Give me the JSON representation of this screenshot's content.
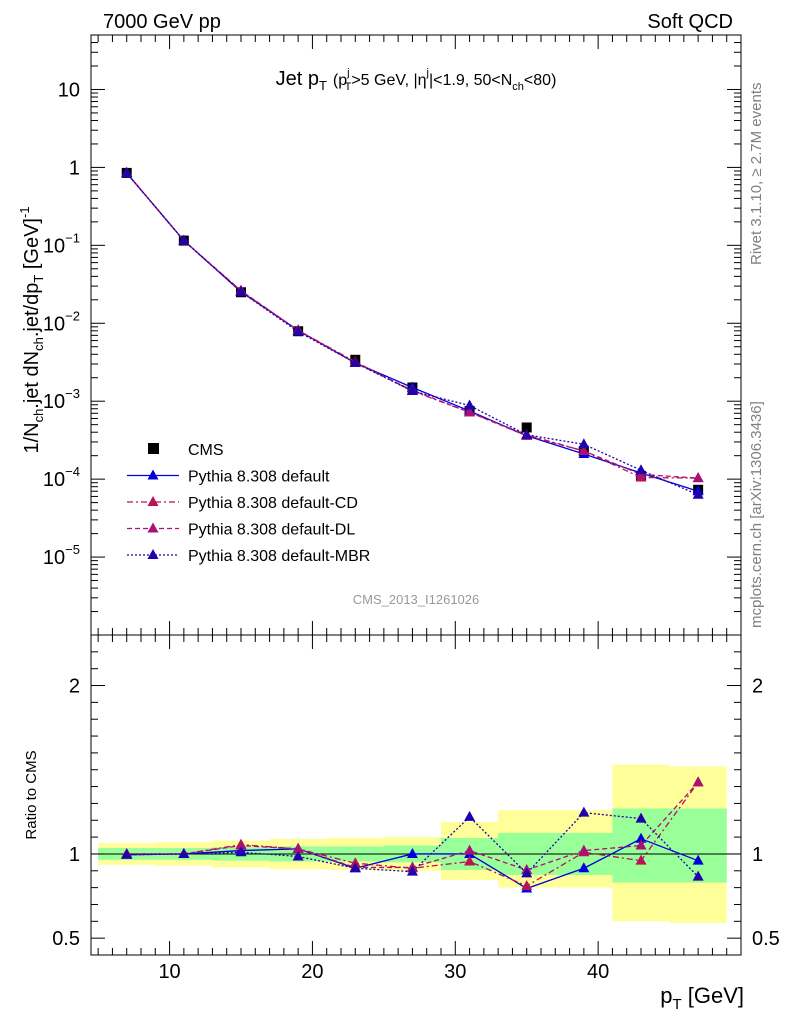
{
  "header": {
    "left": "7000 GeV pp",
    "right": "Soft QCD"
  },
  "side_labels": {
    "rivet": "Rivet 3.1.10, ≥ 2.7M events",
    "mcplots": "mcplots.cern.ch [arXiv:1306.3436]"
  },
  "watermark": "CMS_2013_I1261026",
  "colors": {
    "cms": "#000000",
    "default": "#0000dd",
    "cd": "#bb1155",
    "dl": "#aa1177",
    "mbr": "#2200aa",
    "band_inner": "#99ff99",
    "band_outer": "#ffff99"
  },
  "chart_data": [
    {
      "type": "scatter",
      "title_main": "Jet p",
      "title_main_sub": "T",
      "title_cond": "(p",
      "title_cond_sub": "T",
      "title_cond_sup": "j",
      "title_cond_rest": ">5 GeV, |η",
      "title_cond_sup2": "j",
      "title_cond_rest2": "|<1.9, 50<N",
      "title_cond_sub2": "ch",
      "title_cond_end": "<80)",
      "ylabel": "1/N",
      "ylabel_sub": "ch",
      "ylabel_mid": ".jet dN",
      "ylabel_sub2": "ch",
      "ylabel_mid2": ".jet/dp",
      "ylabel_sub3": "T",
      "ylabel_unit": " [GeV]",
      "ylabel_unit_sup": "-1",
      "y_scale": "log",
      "ylim": [
        1e-06,
        50
      ],
      "xlim": [
        4.5,
        50
      ],
      "ytick_labels": [
        {
          "base": "10",
          "exp": "",
          "value": 10
        },
        {
          "base": "1",
          "exp": "",
          "value": 1
        },
        {
          "base": "10",
          "exp": "−1",
          "value": 0.1
        },
        {
          "base": "10",
          "exp": "−2",
          "value": 0.01
        },
        {
          "base": "10",
          "exp": "−3",
          "value": 0.001
        },
        {
          "base": "10",
          "exp": "−4",
          "value": 0.0001
        },
        {
          "base": "10",
          "exp": "−5",
          "value": 1e-05
        }
      ],
      "x": [
        7,
        11,
        15,
        19,
        23,
        27,
        31,
        35,
        39,
        43,
        47
      ],
      "series": [
        {
          "name": "CMS",
          "key": "cms",
          "marker": "square",
          "dash": "",
          "values": [
            0.85,
            0.115,
            0.025,
            0.0079,
            0.0034,
            0.0015,
            0.00075,
            0.00046,
            0.00023,
            0.00011,
            7.3e-05
          ]
        },
        {
          "name": "Pythia 8.308 default",
          "key": "default",
          "marker": "triangle",
          "dash": "",
          "values": [
            0.845,
            0.115,
            0.0254,
            0.0081,
            0.0031,
            0.0015,
            0.00075,
            0.00036,
            0.00021,
            0.00012,
            7e-05
          ]
        },
        {
          "name": "Pythia 8.308 default-CD",
          "key": "cd",
          "marker": "triangle",
          "dash": "6,3,2,3",
          "values": [
            0.85,
            0.115,
            0.026,
            0.0081,
            0.0032,
            0.00135,
            0.00072,
            0.00037,
            0.00023,
            0.000105,
            0.000103
          ]
        },
        {
          "name": "Pythia 8.308 default-DL",
          "key": "dl",
          "marker": "triangle",
          "dash": "5,3",
          "values": [
            0.85,
            0.115,
            0.0262,
            0.0081,
            0.0031,
            0.00138,
            0.00072,
            0.00036,
            0.00023,
            0.000115,
            0.000103
          ]
        },
        {
          "name": "Pythia 8.308 default-MBR",
          "key": "mbr",
          "marker": "triangle",
          "dash": "2,2",
          "values": [
            0.845,
            0.115,
            0.0253,
            0.0078,
            0.0031,
            0.00135,
            0.00088,
            0.00037,
            0.00028,
            0.00013,
            6.3e-05
          ]
        }
      ],
      "legend_position": "bottom-left"
    },
    {
      "type": "scatter",
      "ylabel": "Ratio to CMS",
      "xlabel": "p",
      "xlabel_sub": "T",
      "xlabel_unit": " [GeV]",
      "ylim": [
        0.4,
        2.3
      ],
      "xlim": [
        4.5,
        50
      ],
      "xticks": [
        10,
        20,
        30,
        40
      ],
      "yticks": [
        0.5,
        1,
        2
      ],
      "ytick_labels": [
        "0.5",
        "1",
        "2"
      ],
      "reference_line": 1,
      "band_edges": [
        5,
        9,
        13,
        17,
        21,
        25,
        29,
        33,
        37,
        41,
        45,
        49
      ],
      "band_inner": [
        [
          0.965,
          1.035
        ],
        [
          0.965,
          1.035
        ],
        [
          0.96,
          1.04
        ],
        [
          0.955,
          1.045
        ],
        [
          0.955,
          1.045
        ],
        [
          0.95,
          1.05
        ],
        [
          0.905,
          1.095
        ],
        [
          0.875,
          1.125
        ],
        [
          0.875,
          1.125
        ],
        [
          0.83,
          1.27
        ],
        [
          0.83,
          1.27
        ]
      ],
      "band_outer": [
        [
          0.935,
          1.065
        ],
        [
          0.93,
          1.07
        ],
        [
          0.92,
          1.08
        ],
        [
          0.91,
          1.09
        ],
        [
          0.905,
          1.095
        ],
        [
          0.9,
          1.1
        ],
        [
          0.845,
          1.19
        ],
        [
          0.8,
          1.26
        ],
        [
          0.8,
          1.26
        ],
        [
          0.6,
          1.53
        ],
        [
          0.59,
          1.52
        ]
      ],
      "x": [
        7,
        11,
        15,
        19,
        23,
        27,
        31,
        35,
        39,
        43,
        47
      ],
      "series": [
        {
          "name": "Pythia 8.308 default",
          "key": "default",
          "dash": "",
          "values": [
            0.995,
            1.0,
            1.02,
            1.03,
            0.915,
            1.0,
            1.0,
            0.795,
            0.915,
            1.09,
            0.96
          ]
        },
        {
          "name": "Pythia 8.308 default-CD",
          "key": "cd",
          "dash": "6,3,2,3",
          "values": [
            1.0,
            1.0,
            1.055,
            1.03,
            0.945,
            0.915,
            0.955,
            0.81,
            1.01,
            0.96,
            1.425
          ]
        },
        {
          "name": "Pythia 8.308 default-DL",
          "key": "dl",
          "dash": "5,3",
          "values": [
            1.0,
            1.0,
            1.05,
            1.03,
            0.92,
            0.92,
            1.02,
            0.905,
            1.02,
            1.05,
            1.425
          ]
        },
        {
          "name": "Pythia 8.308 default-MBR",
          "key": "mbr",
          "dash": "2,2",
          "values": [
            0.995,
            1.0,
            1.01,
            0.985,
            0.915,
            0.895,
            1.22,
            0.885,
            1.245,
            1.21,
            0.865
          ]
        }
      ]
    }
  ]
}
